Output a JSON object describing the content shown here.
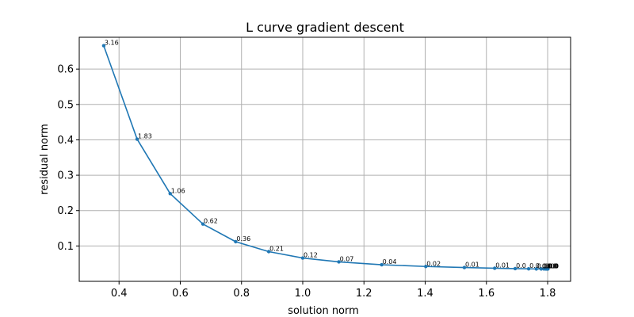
{
  "chart_data": {
    "type": "line",
    "title": "L curve gradient descent",
    "xlabel": "solution norm",
    "ylabel": "residual norm",
    "xlim": [
      0.27,
      1.875
    ],
    "ylim": [
      0.0,
      0.69
    ],
    "xticks": [
      0.4,
      0.6,
      0.8,
      1.0,
      1.2,
      1.4,
      1.6,
      1.8
    ],
    "yticks": [
      0.1,
      0.2,
      0.3,
      0.4,
      0.5,
      0.6
    ],
    "grid": true,
    "series": [
      {
        "color": "#1f77b4",
        "marker": "circle",
        "x": [
          0.35,
          0.459,
          0.567,
          0.674,
          0.781,
          0.889,
          1.0,
          1.118,
          1.258,
          1.402,
          1.528,
          1.627,
          1.694,
          1.738,
          1.763,
          1.779,
          1.788,
          1.794,
          1.797,
          1.799,
          1.8,
          1.801
        ],
        "y": [
          0.666,
          0.402,
          0.248,
          0.162,
          0.112,
          0.084,
          0.066,
          0.055,
          0.047,
          0.042,
          0.039,
          0.037,
          0.036,
          0.0355,
          0.035,
          0.035,
          0.035,
          0.035,
          0.035,
          0.035,
          0.035,
          0.035
        ],
        "labels": [
          "3.16",
          "1.83",
          "1.06",
          "0.62",
          "0.36",
          "0.21",
          "0.12",
          "0.07",
          "0.04",
          "0.02",
          "0.01",
          "0.01",
          "0.0",
          "0.0",
          "0.0",
          "0.0",
          "0.0",
          "0.0",
          "0.0",
          "0.0",
          "0.0",
          "0.0"
        ]
      }
    ]
  }
}
